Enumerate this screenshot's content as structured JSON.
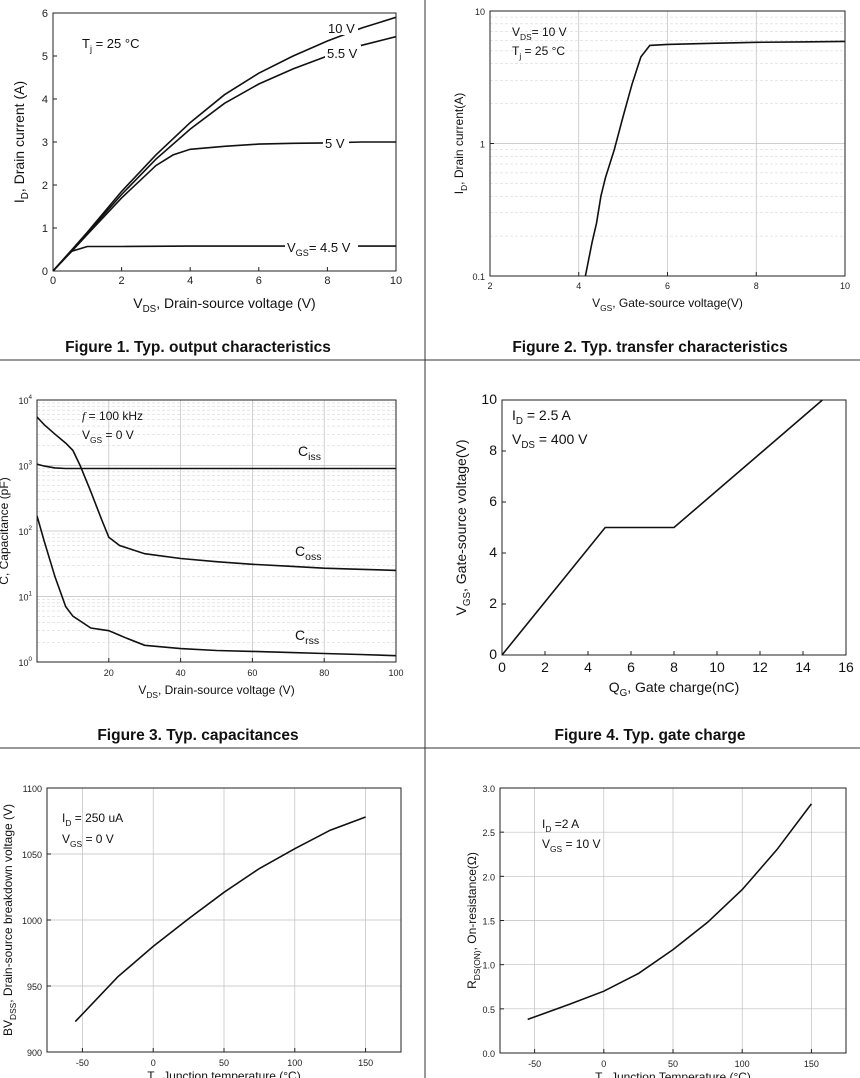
{
  "chart_data": [
    {
      "type": "line",
      "caption": "Figure 1. Typ. output characteristics",
      "xlabel_main": "V",
      "xlabel_sub": "DS",
      "xlabel_rest": ", Drain-source voltage (V)",
      "ylabel_main": "I",
      "ylabel_sub": "D",
      "ylabel_rest": ", Drain current (A)",
      "xlim": [
        0,
        10
      ],
      "ylim": [
        0,
        6
      ],
      "xticks": [
        0,
        2,
        4,
        6,
        8,
        10
      ],
      "yticks": [
        0,
        1,
        2,
        3,
        4,
        5,
        6
      ],
      "annotation": "T_j = 25 °C",
      "series": [
        {
          "name": "10 V",
          "x": [
            0,
            0.5,
            1,
            2,
            3,
            4,
            5,
            6,
            7,
            8,
            9,
            10
          ],
          "y": [
            0,
            0.45,
            0.9,
            1.85,
            2.7,
            3.45,
            4.1,
            4.6,
            5.0,
            5.35,
            5.65,
            5.9
          ]
        },
        {
          "name": "5.5 V",
          "x": [
            0,
            0.5,
            1,
            2,
            3,
            4,
            5,
            6,
            7,
            8,
            9,
            10
          ],
          "y": [
            0,
            0.43,
            0.88,
            1.78,
            2.6,
            3.3,
            3.9,
            4.35,
            4.7,
            5.0,
            5.25,
            5.45
          ]
        },
        {
          "name": "5 V",
          "x": [
            0,
            0.5,
            1,
            2,
            3,
            3.5,
            4,
            5,
            6,
            7,
            8,
            9,
            10
          ],
          "y": [
            0,
            0.42,
            0.85,
            1.7,
            2.45,
            2.7,
            2.83,
            2.9,
            2.95,
            2.97,
            2.98,
            3.0,
            3.0
          ]
        },
        {
          "name": "VGS= 4.5 V",
          "x": [
            0,
            0.5,
            1,
            1.5,
            2,
            4,
            6,
            8,
            10
          ],
          "y": [
            0,
            0.45,
            0.57,
            0.57,
            0.57,
            0.58,
            0.58,
            0.58,
            0.58
          ]
        }
      ]
    },
    {
      "type": "line",
      "caption": "Figure 2. Typ. transfer characteristics",
      "xlabel_main": "V",
      "xlabel_sub": "GS",
      "xlabel_rest": ", Gate-source voltage(V)",
      "ylabel_main": "I",
      "ylabel_sub": "D",
      "ylabel_rest": ", Drain current(A)",
      "xlim": [
        2,
        10
      ],
      "ylim": [
        0.1,
        10
      ],
      "yscale": "log",
      "xticks": [
        2,
        4,
        6,
        8,
        10
      ],
      "yticks": [
        0.1,
        1,
        10
      ],
      "ytick_labels": [
        "0.1",
        "1",
        "10"
      ],
      "annotation1": "V_DS= 10 V",
      "annotation2": "T_j = 25 °C",
      "series": [
        {
          "name": "",
          "x": [
            4.15,
            4.3,
            4.4,
            4.5,
            4.6,
            4.8,
            5.0,
            5.2,
            5.4,
            5.6,
            6,
            7,
            8,
            9,
            10
          ],
          "y": [
            0.1,
            0.18,
            0.25,
            0.4,
            0.55,
            0.9,
            1.6,
            2.8,
            4.5,
            5.5,
            5.6,
            5.7,
            5.8,
            5.85,
            5.9
          ]
        }
      ]
    },
    {
      "type": "line",
      "caption": "Figure 3. Typ. capacitances",
      "xlabel_main": "V",
      "xlabel_sub": "DS",
      "xlabel_rest": ", Drain-source voltage (V)",
      "ylabel": "C, Capacitance (pF)",
      "xlim": [
        0,
        100
      ],
      "ylim": [
        1,
        10000
      ],
      "yscale": "log",
      "xticks": [
        20,
        40,
        60,
        80,
        100
      ],
      "ytick_base": [
        "10",
        "10",
        "10",
        "10",
        "10"
      ],
      "ytick_exp": [
        "0",
        "1",
        "2",
        "3",
        "4"
      ],
      "annotation1": "f = 100 kHz",
      "annotation2": "V_GS = 0 V",
      "series": [
        {
          "name": "Ciss",
          "x": [
            0,
            2,
            5,
            8,
            10,
            20,
            40,
            60,
            80,
            100
          ],
          "y": [
            1050,
            980,
            920,
            900,
            900,
            900,
            900,
            900,
            900,
            900
          ]
        },
        {
          "name": "Coss",
          "x": [
            0,
            2,
            5,
            8,
            10,
            12,
            15,
            18,
            20,
            23,
            30,
            40,
            50,
            60,
            70,
            80,
            90,
            100
          ],
          "y": [
            5500,
            4200,
            3000,
            2200,
            1700,
            1000,
            400,
            150,
            80,
            60,
            45,
            38,
            34,
            31,
            29,
            27,
            26,
            25
          ]
        },
        {
          "name": "Crss",
          "x": [
            0,
            2,
            5,
            8,
            10,
            15,
            20,
            25,
            30,
            40,
            50,
            60,
            70,
            80,
            90,
            100
          ],
          "y": [
            170,
            70,
            20,
            7,
            5,
            3.3,
            3.0,
            2.3,
            1.8,
            1.6,
            1.5,
            1.45,
            1.4,
            1.35,
            1.3,
            1.25
          ]
        }
      ]
    },
    {
      "type": "line",
      "caption": "Figure 4. Typ. gate charge",
      "xlabel_main": "Q",
      "xlabel_sub": "G",
      "xlabel_rest": ", Gate charge(nC)",
      "ylabel_main": "V",
      "ylabel_sub": "GS",
      "ylabel_rest": ", Gate-source voltage(V)",
      "xlim": [
        0,
        16
      ],
      "ylim": [
        0,
        10
      ],
      "xticks": [
        0,
        2,
        4,
        6,
        8,
        10,
        12,
        14,
        16
      ],
      "yticks": [
        0,
        2,
        4,
        6,
        8,
        10
      ],
      "annotation1": "I_D = 2.5 A",
      "annotation2": "V_DS = 400 V",
      "series": [
        {
          "name": "",
          "x": [
            0,
            4.8,
            8.0,
            14.9
          ],
          "y": [
            0,
            5,
            5,
            10
          ]
        }
      ]
    },
    {
      "type": "line",
      "caption": "",
      "xlabel_main": "T",
      "xlabel_sub": "j",
      "xlabel_rest": ", Junction temperature (°C)",
      "ylabel_main": "BV",
      "ylabel_sub": "DSS",
      "ylabel_rest": ", Drain-source breakdown voltage (V)",
      "xlim": [
        -75,
        175
      ],
      "ylim": [
        900,
        1100
      ],
      "xticks": [
        -50,
        0,
        50,
        100,
        150
      ],
      "yticks": [
        900,
        950,
        1000,
        1050,
        1100
      ],
      "annotation1": "I_D = 250 uA",
      "annotation2": "V_GS = 0 V",
      "series": [
        {
          "name": "",
          "x": [
            -55,
            -25,
            0,
            25,
            50,
            75,
            100,
            125,
            150
          ],
          "y": [
            923,
            957,
            980,
            1001,
            1021,
            1039,
            1054,
            1068,
            1078
          ]
        }
      ]
    },
    {
      "type": "line",
      "caption": "",
      "xlabel_main": "T",
      "xlabel_sub": "j",
      "xlabel_rest": ", Junction Temperature (°C)",
      "ylabel_main": "R",
      "ylabel_sub": "DS(ON)",
      "ylabel_rest": ", On-resistance(Ω)",
      "xlim": [
        -75,
        175
      ],
      "ylim": [
        0,
        3.0
      ],
      "xticks": [
        -50,
        0,
        50,
        100,
        150
      ],
      "yticks": [
        0.0,
        0.5,
        1.0,
        1.5,
        2.0,
        2.5,
        3.0
      ],
      "ytick_labels": [
        "0.0",
        "0.5",
        "1.0",
        "1.5",
        "2.0",
        "2.5",
        "3.0"
      ],
      "annotation1": "I_D =2 A",
      "annotation2": "V_GS = 10 V",
      "series": [
        {
          "name": "",
          "x": [
            -55,
            -25,
            0,
            25,
            50,
            75,
            100,
            125,
            150
          ],
          "y": [
            0.38,
            0.55,
            0.7,
            0.9,
            1.17,
            1.48,
            1.85,
            2.3,
            2.82
          ]
        }
      ]
    }
  ]
}
